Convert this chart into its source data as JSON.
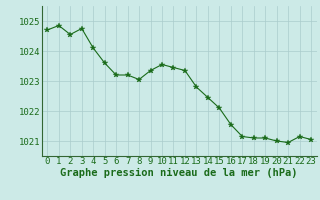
{
  "hours": [
    0,
    1,
    2,
    3,
    4,
    5,
    6,
    7,
    8,
    9,
    10,
    11,
    12,
    13,
    14,
    15,
    16,
    17,
    18,
    19,
    20,
    21,
    22,
    23
  ],
  "pressure": [
    1024.7,
    1024.85,
    1024.55,
    1024.75,
    1024.1,
    1023.6,
    1023.2,
    1023.2,
    1023.05,
    1023.35,
    1023.55,
    1023.45,
    1023.35,
    1022.8,
    1022.45,
    1022.1,
    1021.55,
    1021.15,
    1021.1,
    1021.1,
    1021.0,
    1020.95,
    1021.15,
    1021.05
  ],
  "line_color": "#1a6b1a",
  "marker": "*",
  "marker_size": 4,
  "bg_color": "#cceae7",
  "grid_color": "#aacccc",
  "ylabel_color": "#1a6b1a",
  "xlabel": "Graphe pression niveau de la mer (hPa)",
  "xlabel_color": "#1a6b1a",
  "ylim": [
    1020.5,
    1025.5
  ],
  "yticks": [
    1021,
    1022,
    1023,
    1024,
    1025
  ],
  "tick_fontsize": 6.5,
  "xlabel_fontsize": 7.5
}
